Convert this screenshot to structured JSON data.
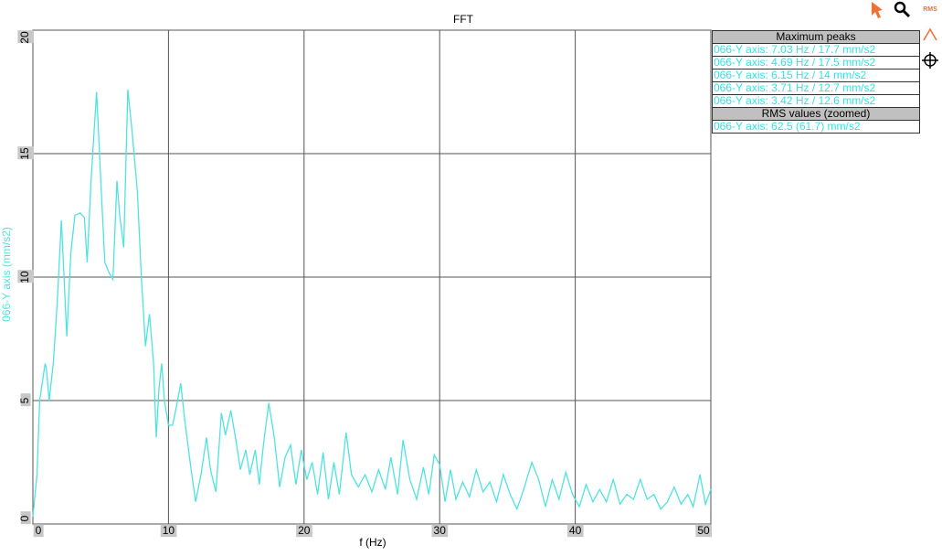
{
  "chart_data": {
    "type": "line",
    "title": "FFT",
    "x_label": "f (Hz)",
    "y_label": "066-Y axis (mm/s2)",
    "xlim": [
      0,
      50
    ],
    "ylim": [
      0,
      20
    ],
    "xticks": [
      0,
      10,
      20,
      30,
      40,
      50
    ],
    "yticks": [
      0,
      5,
      10,
      15,
      20
    ],
    "grid": true,
    "x": [
      0,
      0.3,
      0.5,
      0.9,
      1.0,
      1.2,
      1.5,
      1.8,
      2.1,
      2.3,
      2.5,
      2.8,
      3.1,
      3.5,
      3.8,
      4.0,
      4.3,
      4.7,
      5.0,
      5.3,
      5.6,
      5.9,
      6.2,
      6.4,
      6.7,
      7.0,
      7.3,
      7.7,
      8.0,
      8.3,
      8.6,
      8.9,
      9.1,
      9.3,
      9.5,
      9.7,
      10.0,
      10.3,
      10.6,
      10.9,
      11.2,
      11.6,
      12.0,
      12.4,
      12.8,
      13.1,
      13.5,
      13.9,
      14.2,
      14.6,
      15.0,
      15.3,
      15.7,
      16.0,
      16.4,
      16.7,
      17.0,
      17.4,
      17.8,
      18.2,
      18.6,
      19.0,
      19.4,
      19.8,
      20.2,
      20.6,
      21.0,
      21.4,
      21.8,
      22.2,
      22.6,
      23.1,
      23.5,
      24.0,
      24.5,
      25.0,
      25.5,
      26.0,
      26.4,
      26.9,
      27.3,
      27.8,
      28.3,
      28.8,
      29.2,
      29.6,
      30.0,
      30.4,
      30.8,
      31.2,
      31.7,
      32.2,
      32.7,
      33.2,
      33.7,
      34.2,
      34.7,
      35.2,
      35.7,
      36.2,
      36.8,
      37.3,
      37.8,
      38.3,
      38.8,
      39.3,
      39.8,
      40.3,
      40.8,
      41.3,
      41.8,
      42.3,
      42.8,
      43.3,
      43.8,
      44.3,
      44.8,
      45.3,
      45.8,
      46.3,
      46.8,
      47.3,
      47.8,
      48.3,
      48.7,
      49.2,
      49.6,
      50
    ],
    "series": [
      {
        "color": "#4fe3e0",
        "values": [
          0.3,
          2,
          5,
          6.5,
          6.3,
          5.0,
          6.5,
          9,
          12.3,
          10,
          7.6,
          11,
          12.5,
          12.6,
          12.4,
          10.6,
          14,
          17.5,
          14,
          10.6,
          10.2,
          9.9,
          13.9,
          12.5,
          11.2,
          17.6,
          16,
          13.5,
          10,
          7.2,
          8.5,
          6.5,
          3.5,
          5.5,
          6.5,
          5,
          4.0,
          4.0,
          4.8,
          5.7,
          4.2,
          2.5,
          0.9,
          2,
          3.5,
          2.2,
          1.3,
          4.5,
          3.6,
          4.6,
          3.3,
          2.2,
          3.0,
          2.0,
          3.0,
          1.6,
          3.2,
          4.9,
          3.5,
          1.5,
          2.7,
          3.2,
          1.6,
          3.0,
          1.8,
          2.5,
          1.2,
          2.9,
          1.0,
          2.5,
          1.2,
          3.7,
          2.0,
          1.5,
          2.0,
          1.3,
          2.2,
          1.4,
          2.7,
          1.2,
          3.4,
          1.8,
          1.0,
          2.3,
          1.2,
          2.8,
          2.4,
          0.9,
          2.2,
          1.0,
          1.7,
          1.1,
          2.2,
          1.3,
          1.7,
          0.9,
          2.0,
          1.2,
          0.6,
          1.4,
          2.5,
          1.8,
          0.7,
          1.8,
          1.0,
          2.1,
          1.2,
          0.7,
          1.6,
          0.9,
          1.4,
          0.9,
          1.8,
          0.8,
          1.2,
          1.0,
          1.8,
          1.0,
          1.2,
          0.6,
          0.9,
          1.5,
          0.8,
          1.2,
          0.7,
          2.0,
          0.8,
          1.4
        ]
      }
    ]
  },
  "panel": {
    "peaks_title": "Maximum peaks",
    "peaks": [
      "066-Y axis: 7.03 Hz / 17.7 mm/s2",
      "066-Y axis: 4.69 Hz / 17.5 mm/s2",
      "066-Y axis: 6.15 Hz / 14 mm/s2",
      "066-Y axis: 3.71 Hz / 12.7 mm/s2",
      "066-Y axis: 3.42 Hz / 12.6 mm/s2"
    ],
    "rms_title": "RMS values (zoomed)",
    "rms": [
      "066-Y axis: 62.5 (61.7) mm/s2"
    ]
  },
  "toolbar": {
    "rms": "RMS"
  }
}
